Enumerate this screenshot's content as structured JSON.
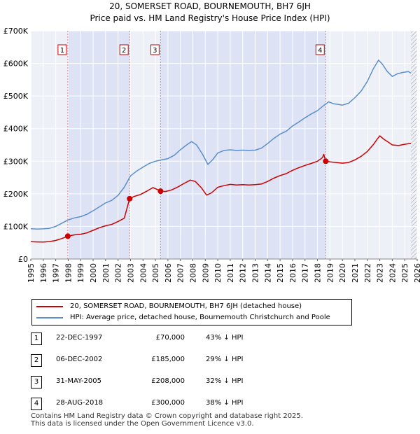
{
  "title_line1": "20, SOMERSET ROAD, BOURNEMOUTH, BH7 6JH",
  "title_line2": "Price paid vs. HM Land Registry's House Price Index (HPI)",
  "chart_data": {
    "type": "line",
    "xlim": [
      1995,
      2026
    ],
    "ylim": [
      0,
      700000
    ],
    "y_ticks": [
      {
        "value": 0,
        "label": "£0"
      },
      {
        "value": 100000,
        "label": "£100K"
      },
      {
        "value": 200000,
        "label": "£200K"
      },
      {
        "value": 300000,
        "label": "£300K"
      },
      {
        "value": 400000,
        "label": "£400K"
      },
      {
        "value": 500000,
        "label": "£500K"
      },
      {
        "value": 600000,
        "label": "£600K"
      },
      {
        "value": 700000,
        "label": "£700K"
      }
    ],
    "x_ticks": [
      "1995",
      "1996",
      "1997",
      "1998",
      "1999",
      "2000",
      "2001",
      "2002",
      "2003",
      "2004",
      "2005",
      "2006",
      "2007",
      "2008",
      "2009",
      "2010",
      "2011",
      "2012",
      "2013",
      "2014",
      "2015",
      "2016",
      "2017",
      "2018",
      "2019",
      "2020",
      "2021",
      "2022",
      "2023",
      "2024",
      "2025",
      "2026"
    ],
    "grid": true,
    "series": [
      {
        "name": "20, SOMERSET ROAD, BOURNEMOUTH, BH7 6JH (detached house)",
        "color": "#cc0000",
        "points": [
          [
            1995.0,
            53000
          ],
          [
            1995.5,
            52500
          ],
          [
            1996.0,
            52000
          ],
          [
            1996.5,
            53500
          ],
          [
            1997.0,
            57000
          ],
          [
            1997.5,
            63000
          ],
          [
            1997.97,
            70000
          ],
          [
            1998.5,
            74000
          ],
          [
            1999.0,
            76000
          ],
          [
            1999.5,
            80000
          ],
          [
            2000.0,
            88000
          ],
          [
            2000.5,
            96000
          ],
          [
            2001.0,
            102000
          ],
          [
            2001.5,
            106000
          ],
          [
            2002.0,
            115000
          ],
          [
            2002.5,
            125000
          ],
          [
            2002.93,
            185000
          ],
          [
            2003.3,
            192000
          ],
          [
            2003.8,
            198000
          ],
          [
            2004.3,
            208000
          ],
          [
            2004.8,
            219000
          ],
          [
            2005.1,
            214000
          ],
          [
            2005.41,
            208000
          ],
          [
            2005.8,
            207000
          ],
          [
            2006.3,
            212000
          ],
          [
            2006.8,
            221000
          ],
          [
            2007.3,
            232000
          ],
          [
            2007.8,
            242000
          ],
          [
            2008.2,
            238000
          ],
          [
            2008.7,
            218000
          ],
          [
            2009.1,
            196000
          ],
          [
            2009.5,
            203000
          ],
          [
            2010.0,
            220000
          ],
          [
            2010.5,
            225000
          ],
          [
            2011.0,
            229000
          ],
          [
            2011.5,
            227000
          ],
          [
            2012.0,
            228000
          ],
          [
            2012.5,
            227000
          ],
          [
            2013.0,
            228000
          ],
          [
            2013.5,
            230000
          ],
          [
            2014.0,
            238000
          ],
          [
            2014.5,
            248000
          ],
          [
            2015.0,
            256000
          ],
          [
            2015.5,
            262000
          ],
          [
            2016.0,
            272000
          ],
          [
            2016.5,
            280000
          ],
          [
            2017.0,
            287000
          ],
          [
            2017.5,
            293000
          ],
          [
            2018.0,
            300000
          ],
          [
            2018.4,
            311000
          ],
          [
            2018.5,
            321000
          ],
          [
            2018.66,
            300000
          ],
          [
            2019.0,
            298000
          ],
          [
            2019.5,
            296000
          ],
          [
            2020.0,
            294000
          ],
          [
            2020.5,
            296000
          ],
          [
            2021.0,
            304000
          ],
          [
            2021.5,
            315000
          ],
          [
            2022.0,
            330000
          ],
          [
            2022.5,
            352000
          ],
          [
            2022.8,
            368000
          ],
          [
            2023.0,
            378000
          ],
          [
            2023.3,
            368000
          ],
          [
            2023.7,
            358000
          ],
          [
            2024.0,
            350000
          ],
          [
            2024.5,
            348000
          ],
          [
            2025.0,
            352000
          ],
          [
            2025.5,
            355000
          ]
        ]
      },
      {
        "name": "HPI: Average price, detached house, Bournemouth Christchurch and Poole",
        "color": "#5b8fc9",
        "points": [
          [
            1995.0,
            93000
          ],
          [
            1995.5,
            92000
          ],
          [
            1996.0,
            92500
          ],
          [
            1996.5,
            94000
          ],
          [
            1997.0,
            100000
          ],
          [
            1997.5,
            110000
          ],
          [
            1998.0,
            120000
          ],
          [
            1998.5,
            126000
          ],
          [
            1999.0,
            130000
          ],
          [
            1999.5,
            137000
          ],
          [
            2000.0,
            148000
          ],
          [
            2000.5,
            160000
          ],
          [
            2001.0,
            172000
          ],
          [
            2001.5,
            180000
          ],
          [
            2002.0,
            195000
          ],
          [
            2002.5,
            220000
          ],
          [
            2003.0,
            255000
          ],
          [
            2003.5,
            270000
          ],
          [
            2004.0,
            282000
          ],
          [
            2004.5,
            293000
          ],
          [
            2005.0,
            300000
          ],
          [
            2005.5,
            304000
          ],
          [
            2006.0,
            308000
          ],
          [
            2006.5,
            318000
          ],
          [
            2007.0,
            335000
          ],
          [
            2007.5,
            350000
          ],
          [
            2007.9,
            360000
          ],
          [
            2008.3,
            350000
          ],
          [
            2008.8,
            320000
          ],
          [
            2009.2,
            290000
          ],
          [
            2009.6,
            305000
          ],
          [
            2010.0,
            325000
          ],
          [
            2010.5,
            333000
          ],
          [
            2011.0,
            335000
          ],
          [
            2011.5,
            333000
          ],
          [
            2012.0,
            334000
          ],
          [
            2012.5,
            333000
          ],
          [
            2013.0,
            334000
          ],
          [
            2013.5,
            340000
          ],
          [
            2014.0,
            354000
          ],
          [
            2014.5,
            370000
          ],
          [
            2015.0,
            383000
          ],
          [
            2015.5,
            392000
          ],
          [
            2016.0,
            408000
          ],
          [
            2016.5,
            420000
          ],
          [
            2017.0,
            433000
          ],
          [
            2017.5,
            445000
          ],
          [
            2018.0,
            455000
          ],
          [
            2018.5,
            471000
          ],
          [
            2018.9,
            482000
          ],
          [
            2019.3,
            476000
          ],
          [
            2019.7,
            474000
          ],
          [
            2020.0,
            472000
          ],
          [
            2020.5,
            478000
          ],
          [
            2021.0,
            495000
          ],
          [
            2021.5,
            515000
          ],
          [
            2022.0,
            545000
          ],
          [
            2022.5,
            585000
          ],
          [
            2022.9,
            610000
          ],
          [
            2023.2,
            598000
          ],
          [
            2023.6,
            575000
          ],
          [
            2024.0,
            560000
          ],
          [
            2024.4,
            568000
          ],
          [
            2024.8,
            572000
          ],
          [
            2025.3,
            575000
          ],
          [
            2025.5,
            570000
          ]
        ]
      }
    ],
    "sales": [
      {
        "num": "1",
        "x": 1997.97,
        "value": 70000
      },
      {
        "num": "2",
        "x": 2002.93,
        "value": 185000
      },
      {
        "num": "3",
        "x": 2005.41,
        "value": 208000
      },
      {
        "num": "4",
        "x": 2018.66,
        "value": 300000
      }
    ],
    "shaded_ranges": [
      [
        1997.97,
        2002.93
      ],
      [
        2005.41,
        2018.66
      ]
    ],
    "future_from": 2025.5
  },
  "legend": {
    "property": "20, SOMERSET ROAD, BOURNEMOUTH, BH7 6JH (detached house)",
    "hpi": "HPI: Average price, detached house, Bournemouth Christchurch and Poole"
  },
  "sales_table": [
    {
      "num": "1",
      "date": "22-DEC-1997",
      "price": "£70,000",
      "hpi": "43% ↓ HPI"
    },
    {
      "num": "2",
      "date": "06-DEC-2002",
      "price": "£185,000",
      "hpi": "29% ↓ HPI"
    },
    {
      "num": "3",
      "date": "31-MAY-2005",
      "price": "£208,000",
      "hpi": "32% ↓ HPI"
    },
    {
      "num": "4",
      "date": "28-AUG-2018",
      "price": "£300,000",
      "hpi": "38% ↓ HPI"
    }
  ],
  "footer_line1": "Contains HM Land Registry data © Crown copyright and database right 2025.",
  "footer_line2": "This data is licensed under the Open Government Licence v3.0."
}
